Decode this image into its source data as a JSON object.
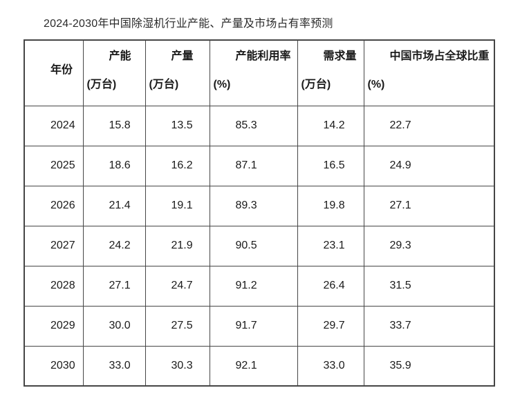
{
  "title": "2024-2030年中国除湿机行业产能、产量及市场占有率预测",
  "colors": {
    "background": "#ffffff",
    "border": "#454545",
    "text": "#1a1a1a"
  },
  "table": {
    "columns": [
      {
        "label": "年份",
        "unit": ""
      },
      {
        "label": "产能",
        "unit": "(万台)"
      },
      {
        "label": "产量",
        "unit": "(万台)"
      },
      {
        "label": "产能利用率",
        "unit": "(%)"
      },
      {
        "label": "需求量",
        "unit": "(万台)"
      },
      {
        "label": "中国市场占全球比重",
        "unit": "(%)"
      }
    ],
    "rows": [
      [
        "2024",
        "15.8",
        "13.5",
        "85.3",
        "14.2",
        "22.7"
      ],
      [
        "2025",
        "18.6",
        "16.2",
        "87.1",
        "16.5",
        "24.9"
      ],
      [
        "2026",
        "21.4",
        "19.1",
        "89.3",
        "19.8",
        "27.1"
      ],
      [
        "2027",
        "24.2",
        "21.9",
        "90.5",
        "23.1",
        "29.3"
      ],
      [
        "2028",
        "27.1",
        "24.7",
        "91.2",
        "26.4",
        "31.5"
      ],
      [
        "2029",
        "30.0",
        "27.5",
        "91.7",
        "29.7",
        "33.7"
      ],
      [
        "2030",
        "33.0",
        "30.3",
        "92.1",
        "33.0",
        "35.9"
      ]
    ]
  },
  "chart_data": {
    "type": "table",
    "title": "2024-2030年中国除湿机行业产能、产量及市场占有率预测",
    "columns": [
      "年份",
      "产能(万台)",
      "产量(万台)",
      "产能利用率(%)",
      "需求量(万台)",
      "中国市场占全球比重(%)"
    ],
    "rows": [
      [
        2024,
        15.8,
        13.5,
        85.3,
        14.2,
        22.7
      ],
      [
        2025,
        18.6,
        16.2,
        87.1,
        16.5,
        24.9
      ],
      [
        2026,
        21.4,
        19.1,
        89.3,
        19.8,
        27.1
      ],
      [
        2027,
        24.2,
        21.9,
        90.5,
        23.1,
        29.3
      ],
      [
        2028,
        27.1,
        24.7,
        91.2,
        26.4,
        31.5
      ],
      [
        2029,
        30.0,
        27.5,
        91.7,
        29.7,
        33.7
      ],
      [
        2030,
        33.0,
        30.3,
        92.1,
        33.0,
        35.9
      ]
    ]
  }
}
